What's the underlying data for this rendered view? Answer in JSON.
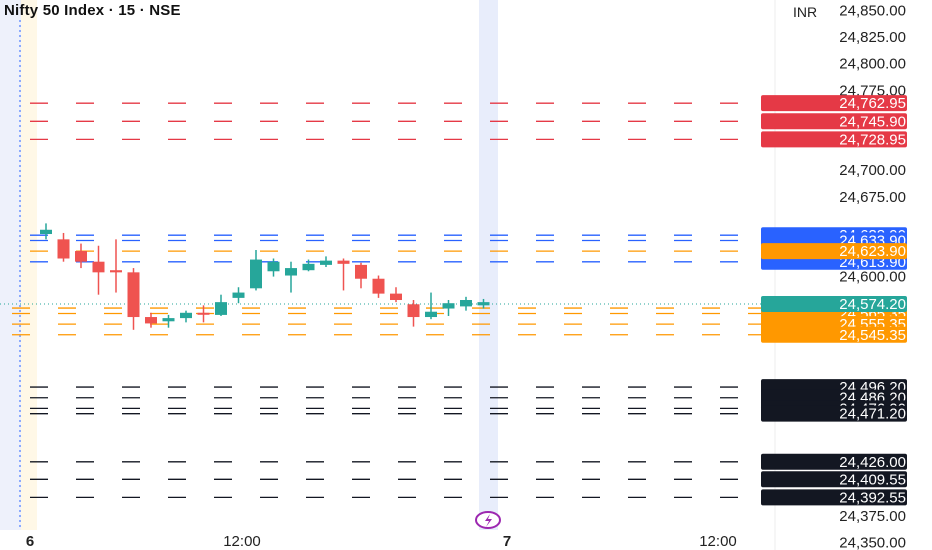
{
  "header": {
    "title": "Nifty 50 Index · 15 · NSE",
    "currency": "INR"
  },
  "chart_data": {
    "type": "candlestick",
    "ylim": [
      24345,
      24858
    ],
    "y_ticks": [
      "24,850.00",
      "24,825.00",
      "24,800.00",
      "24,775.00",
      "24,700.00",
      "24,675.00",
      "24,600.00",
      "24,375.00",
      "24,350.00"
    ],
    "x_ticks": [
      "6",
      "12:00",
      "7",
      "12:00"
    ],
    "colors": {
      "up": "#26a69a",
      "down": "#ef5350",
      "resistance": "#e53946",
      "support_blue": "#2962ff",
      "pivot_orange": "#ff9800",
      "support_black": "#131722"
    },
    "last_price": {
      "label": "24,574.20",
      "value": 24574.2
    },
    "level_groups": [
      {
        "group": "red",
        "color": "#e53946",
        "levels": [
          {
            "label": "24,762.95",
            "value": 24762.95
          },
          {
            "label": "24,745.90",
            "value": 24745.9
          },
          {
            "label": "24,728.95",
            "value": 24728.95
          }
        ]
      },
      {
        "group": "blue",
        "color": "#2962ff",
        "levels": [
          {
            "label": "24,638.90",
            "value": 24638.9
          },
          {
            "label": "24,633.90",
            "value": 24633.9
          },
          {
            "label": "24,613.90",
            "value": 24613.9
          }
        ]
      },
      {
        "group": "orange",
        "color": "#ff9800",
        "levels": [
          {
            "label": "24,623.90",
            "value": 24623.9
          },
          {
            "label": "24,570.45",
            "value": 24570.45
          },
          {
            "label": "24,565.35",
            "value": 24565.35
          },
          {
            "label": "24,555.35",
            "value": 24555.35
          },
          {
            "label": "24,545.35",
            "value": 24545.35
          }
        ]
      },
      {
        "group": "black",
        "color": "#131722",
        "levels": [
          {
            "label": "24,496.20",
            "value": 24496.2
          },
          {
            "label": "24,486.20",
            "value": 24486.2
          },
          {
            "label": "24,476.20",
            "value": 24476.2
          },
          {
            "label": "24,471.20",
            "value": 24471.2
          },
          {
            "label": "24,426.00",
            "value": 24426.0
          },
          {
            "label": "24,409.55",
            "value": 24409.55
          },
          {
            "label": "24,392.55",
            "value": 24392.55
          }
        ]
      }
    ],
    "candles": [
      {
        "o": 24640,
        "h": 24650,
        "c": 24644,
        "l": 24635
      },
      {
        "o": 24635,
        "h": 24641,
        "c": 24617,
        "l": 24614
      },
      {
        "o": 24624,
        "h": 24631,
        "c": 24614,
        "l": 24608
      },
      {
        "o": 24614,
        "h": 24629,
        "c": 24604,
        "l": 24583
      },
      {
        "o": 24606,
        "h": 24635,
        "c": 24604,
        "l": 24585
      },
      {
        "o": 24604,
        "h": 24608,
        "c": 24562,
        "l": 24550
      },
      {
        "o": 24562,
        "h": 24566,
        "c": 24556,
        "l": 24552
      },
      {
        "o": 24558,
        "h": 24564,
        "c": 24561,
        "l": 24552
      },
      {
        "o": 24561,
        "h": 24568,
        "c": 24566,
        "l": 24557
      },
      {
        "o": 24566,
        "h": 24573,
        "c": 24565,
        "l": 24557
      },
      {
        "o": 24564,
        "h": 24583,
        "c": 24576,
        "l": 24563
      },
      {
        "o": 24580,
        "h": 24590,
        "c": 24585,
        "l": 24575
      },
      {
        "o": 24589,
        "h": 24625,
        "c": 24616,
        "l": 24587
      },
      {
        "o": 24605,
        "h": 24617,
        "c": 24614,
        "l": 24600
      },
      {
        "o": 24601,
        "h": 24614,
        "c": 24608,
        "l": 24585
      },
      {
        "o": 24606,
        "h": 24616,
        "c": 24612,
        "l": 24605
      },
      {
        "o": 24611,
        "h": 24619,
        "c": 24615,
        "l": 24609
      },
      {
        "o": 24615,
        "h": 24617,
        "c": 24612,
        "l": 24587
      },
      {
        "o": 24611,
        "h": 24613,
        "c": 24598,
        "l": 24589
      },
      {
        "o": 24598,
        "h": 24601,
        "c": 24584,
        "l": 24580
      },
      {
        "o": 24584,
        "h": 24590,
        "c": 24578,
        "l": 24576
      },
      {
        "o": 24574,
        "h": 24578,
        "c": 24562,
        "l": 24553
      },
      {
        "o": 24562,
        "h": 24585,
        "c": 24567,
        "l": 24560
      },
      {
        "o": 24570,
        "h": 24578,
        "c": 24575,
        "l": 24563
      },
      {
        "o": 24572,
        "h": 24581,
        "c": 24578,
        "l": 24568
      },
      {
        "o": 24573,
        "h": 24579,
        "c": 24576,
        "l": 24570
      }
    ]
  }
}
